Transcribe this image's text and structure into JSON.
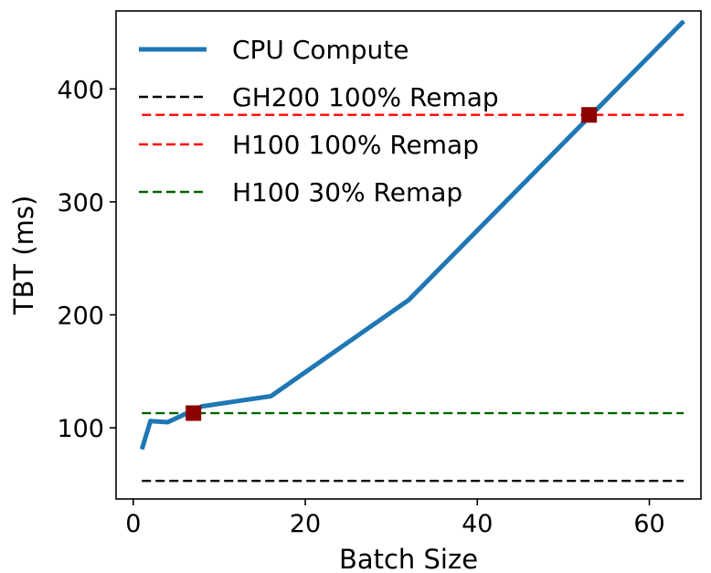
{
  "chart_data": {
    "type": "line",
    "title": "",
    "xlabel": "Batch Size",
    "ylabel": "TBT (ms)",
    "xlim": [
      -2,
      66
    ],
    "ylim": [
      37,
      469
    ],
    "xticks": [
      0,
      20,
      40,
      60
    ],
    "yticks": [
      100,
      200,
      300,
      400
    ],
    "legend_position": "top-left",
    "series": [
      {
        "name": "CPU Compute",
        "style": "solid",
        "color": "#1f77b4",
        "x": [
          1,
          2,
          4,
          8,
          16,
          32,
          64
        ],
        "y": [
          81,
          106,
          105,
          119,
          128,
          213,
          460
        ]
      }
    ],
    "hlines": [
      {
        "name": "GH200 100% Remap",
        "y": 53,
        "color": "#000000",
        "style": "dashed"
      },
      {
        "name": "H100 100% Remap",
        "y": 377,
        "color": "#ff0000",
        "style": "dashed"
      },
      {
        "name": "H100 30% Remap",
        "y": 113,
        "color": "#006400",
        "style": "dashed"
      }
    ],
    "markers": [
      {
        "name": "crossover-30",
        "x": 7,
        "y": 113,
        "color": "#8b0000",
        "shape": "square"
      },
      {
        "name": "crossover-100",
        "x": 53,
        "y": 377,
        "color": "#8b0000",
        "shape": "square"
      }
    ],
    "legend": [
      "CPU Compute",
      "GH200 100% Remap",
      "H100 100% Remap",
      "H100 30% Remap"
    ]
  }
}
